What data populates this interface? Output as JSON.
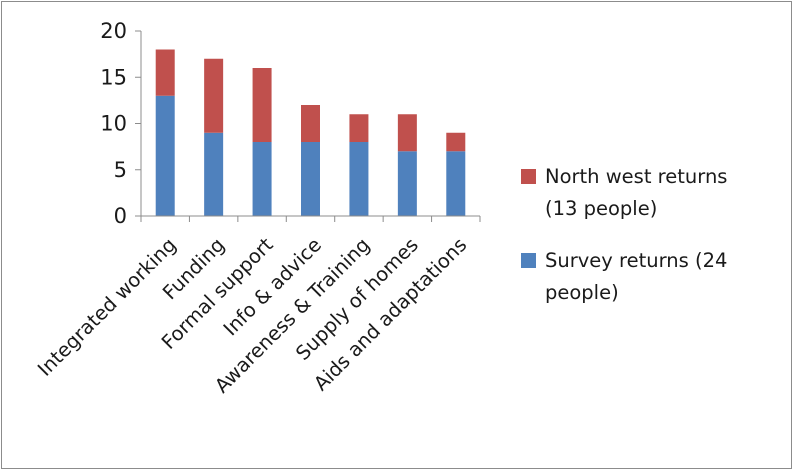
{
  "chart_data": {
    "type": "bar",
    "stacked": true,
    "title": "",
    "xlabel": "",
    "ylabel": "",
    "categories": [
      "Integrated working",
      "Funding",
      "Formal support",
      "Info & advice",
      "Awareness & Training",
      "Supply of homes",
      "Aids and adaptations"
    ],
    "series": [
      {
        "name": "Survey returns (24 people)",
        "values": [
          13,
          9,
          8,
          8,
          8,
          7,
          7
        ],
        "color": "#4f81bd"
      },
      {
        "name": "North west returns (13 people)",
        "values": [
          5,
          8,
          8,
          4,
          3,
          4,
          2
        ],
        "color": "#c0504d"
      }
    ],
    "ylim": [
      0,
      20
    ],
    "yticks": [
      0,
      5,
      10,
      15,
      20
    ],
    "grid": false,
    "legend_position": "right",
    "legend": {
      "items": [
        {
          "lines": [
            "North west returns",
            "(13 people)"
          ],
          "color": "#c0504d"
        },
        {
          "lines": [
            "Survey returns (24",
            "people)"
          ],
          "color": "#4f81bd"
        }
      ]
    }
  }
}
